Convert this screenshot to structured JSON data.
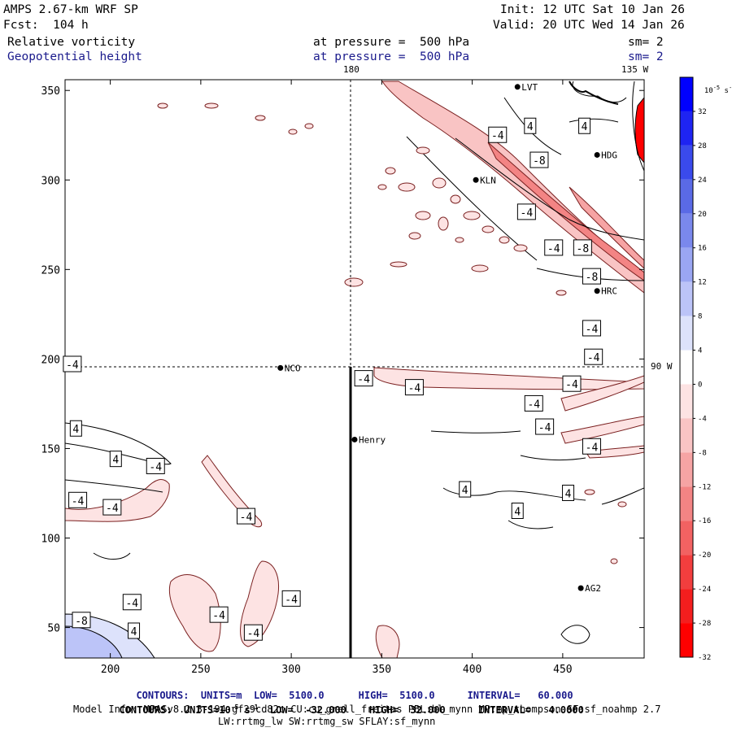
{
  "header": {
    "model": "AMPS 2.67-km WRF SP",
    "forecast": "Fcst:  104 h",
    "init": "Init: 12 UTC Sat 10 Jan 26",
    "valid": "Valid: 20 UTC Wed 14 Jan 26",
    "field1": "Relative vorticity",
    "field2": "Geopotential height",
    "level1": "at pressure =  500 hPa",
    "level2": "at pressure =  500 hPa",
    "sm1": "sm= 2",
    "sm2": "sm= 2"
  },
  "map_labels": {
    "lon_180": "180",
    "lon_135w": "135 W",
    "lat_90w": "90 W"
  },
  "stations": [
    {
      "name": "LVT",
      "x": 425,
      "y": 352
    },
    {
      "name": "HDG",
      "x": 469,
      "y": 314
    },
    {
      "name": "KLN",
      "x": 402,
      "y": 300
    },
    {
      "name": "HRC",
      "x": 469,
      "y": 238
    },
    {
      "name": "NCO",
      "x": 294,
      "y": 195
    },
    {
      "name": "Henry",
      "x": 335,
      "y": 155
    },
    {
      "name": "AG2",
      "x": 460,
      "y": 72
    }
  ],
  "contour_labels": [
    {
      "v": "4",
      "x": 432,
      "y": 330
    },
    {
      "v": "4",
      "x": 462,
      "y": 330
    },
    {
      "v": "-4",
      "x": 414,
      "y": 325
    },
    {
      "v": "-8",
      "x": 437,
      "y": 311
    },
    {
      "v": "-4",
      "x": 430,
      "y": 282
    },
    {
      "v": "-4",
      "x": 445,
      "y": 262
    },
    {
      "v": "-8",
      "x": 461,
      "y": 262
    },
    {
      "v": "-8",
      "x": 466,
      "y": 246
    },
    {
      "v": "-4",
      "x": 466,
      "y": 217
    },
    {
      "v": "-4",
      "x": 467,
      "y": 201
    },
    {
      "v": "-4",
      "x": 179,
      "y": 197
    },
    {
      "v": "-4",
      "x": 340,
      "y": 189
    },
    {
      "v": "-4",
      "x": 368,
      "y": 184
    },
    {
      "v": "-4",
      "x": 455,
      "y": 186
    },
    {
      "v": "-4",
      "x": 434,
      "y": 175
    },
    {
      "v": "-4",
      "x": 440,
      "y": 162
    },
    {
      "v": "-4",
      "x": 466,
      "y": 151
    },
    {
      "v": "4",
      "x": 181,
      "y": 161
    },
    {
      "v": "4",
      "x": 203,
      "y": 144
    },
    {
      "v": "-4",
      "x": 225,
      "y": 140
    },
    {
      "v": "-4",
      "x": 182,
      "y": 121
    },
    {
      "v": "-4",
      "x": 201,
      "y": 117
    },
    {
      "v": "-4",
      "x": 275,
      "y": 112
    },
    {
      "v": "4",
      "x": 396,
      "y": 127
    },
    {
      "v": "4",
      "x": 453,
      "y": 125
    },
    {
      "v": "4",
      "x": 425,
      "y": 115
    },
    {
      "v": "-4",
      "x": 212,
      "y": 64
    },
    {
      "v": "-4",
      "x": 260,
      "y": 57
    },
    {
      "v": "-4",
      "x": 300,
      "y": 66
    },
    {
      "v": "-4",
      "x": 279,
      "y": 47
    },
    {
      "v": "-8",
      "x": 184,
      "y": 54
    },
    {
      "v": "4",
      "x": 213,
      "y": 48
    }
  ],
  "footer": {
    "line1_prefix": "CONTOURS:  UNITS=m  LOW=  5100.0",
    "line1_high": "HIGH=  5100.0",
    "line1_int": "INTERVAL=   60.000",
    "line2_prefix": "CONTOURS:  UNITS=10",
    "line2_exp": "-5",
    "line2_unit": " s",
    "line2_exp2": "-1",
    "line2_low": "  LOW=  -32.000",
    "line2_high": "HIGH=  32.000",
    "line2_int": "INTERVAL=   4.0000",
    "line3": "Model Info: MPASv8.2.3-194-gf29cd82c CU:cu_grell_freitas PBL:bl_mynn MP:mp_thompson SF:sf_noahmp 2.7",
    "line4": "LW:rrtmg_lw SW:rrtmg_sw SFLAY:sf_mynn"
  },
  "colorbar": {
    "unit_base": "10",
    "unit_exp": "-5",
    "unit_s": " s",
    "unit_exp2": "-1",
    "ticks": [
      "32",
      "28",
      "24",
      "20",
      "16",
      "12",
      "8",
      "4",
      "0",
      "-4",
      "-8",
      "-12",
      "-16",
      "-20",
      "-24",
      "-28",
      "-32"
    ],
    "colors": [
      "#0000ff",
      "#1e24f2",
      "#3a4aec",
      "#5a6ae6",
      "#7a88ec",
      "#9aa6f2",
      "#bcc4f8",
      "#dde2fb",
      "#ffffff",
      "#fde3e3",
      "#f9c4c4",
      "#f6a4a4",
      "#f38484",
      "#f26262",
      "#f23e3e",
      "#f41e1e",
      "#ff0000"
    ]
  },
  "chart_data": {
    "type": "heatmap",
    "title": "Relative vorticity / Geopotential height at 500 hPa",
    "xlim": [
      175,
      495
    ],
    "ylim": [
      33,
      356
    ],
    "x_ticks": [
      200,
      250,
      300,
      350,
      400,
      450
    ],
    "y_ticks": [
      50,
      100,
      150,
      200,
      250,
      300,
      350
    ],
    "grid": "dashed reference lines at x=333 and y=195",
    "colorbar_range": [
      -32,
      32
    ],
    "contour_interval": 4
  }
}
